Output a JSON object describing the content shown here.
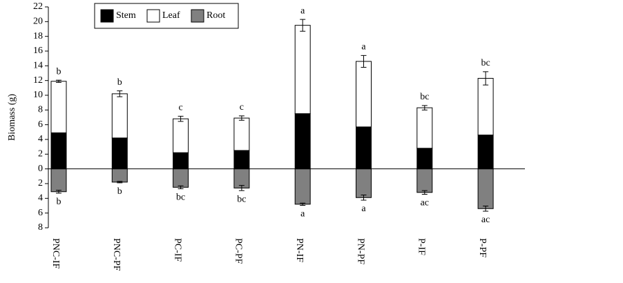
{
  "chart_data": {
    "type": "bar",
    "stacked": true,
    "y_label": "Biomass (g)",
    "categories": [
      "PNC-IF",
      "PNC-PF",
      "PC-IF",
      "PC-PF",
      "PN-IF",
      "PN-PF",
      "P-IF",
      "P-PF"
    ],
    "series": [
      {
        "name": "Stem",
        "color": "#000000",
        "values": [
          4.9,
          4.2,
          2.2,
          2.5,
          7.5,
          5.7,
          2.8,
          4.6
        ]
      },
      {
        "name": "Leaf",
        "color": "#ffffff",
        "values": [
          7.0,
          6.0,
          4.6,
          4.4,
          12.0,
          8.9,
          5.5,
          7.7
        ]
      },
      {
        "name": "Root",
        "color": "#808080",
        "values": [
          -3.1,
          -1.8,
          -2.5,
          -2.6,
          -4.8,
          -3.9,
          -3.2,
          -5.4
        ]
      }
    ],
    "top_errors": [
      0.15,
      0.4,
      0.35,
      0.3,
      0.8,
      0.8,
      0.3,
      0.9
    ],
    "root_errors": [
      0.2,
      0.1,
      0.2,
      0.35,
      0.15,
      0.35,
      0.25,
      0.35
    ],
    "top_labels": [
      "b",
      "b",
      "c",
      "c",
      "a",
      "a",
      "bc",
      "bc"
    ],
    "bottom_labels": [
      "b",
      "b",
      "bc",
      "bc",
      "a",
      "a",
      "ac",
      "ac"
    ],
    "ylim": [
      -8,
      22
    ],
    "yticks": [
      {
        "value": -8,
        "label": "8"
      },
      {
        "value": -6,
        "label": "6"
      },
      {
        "value": -4,
        "label": "4"
      },
      {
        "value": -2,
        "label": "2"
      },
      0,
      2,
      4,
      6,
      8,
      10,
      12,
      14,
      16,
      18,
      20,
      22
    ]
  }
}
